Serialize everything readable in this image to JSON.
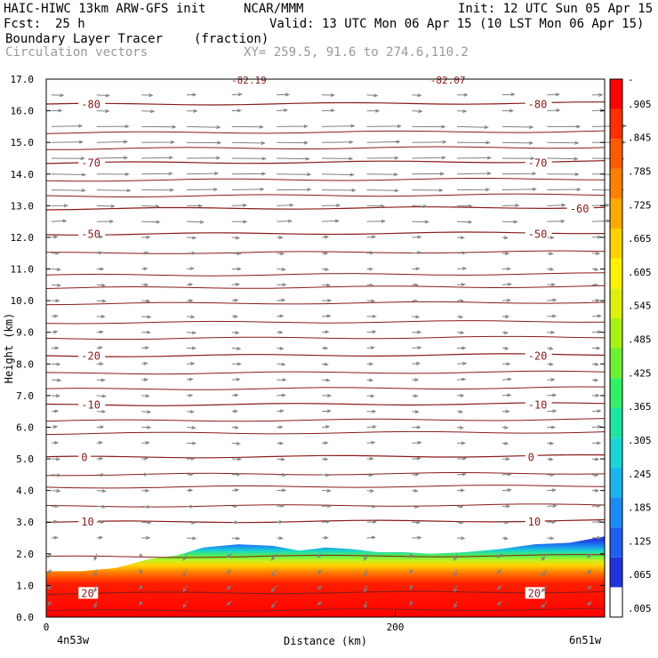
{
  "header": {
    "model": "HAIC-HIWC 13km ARW-GFS init",
    "org": "NCAR/MMM",
    "init": "Init: 12 UTC Sun 05 Apr 15",
    "fcst_label": "Fcst:",
    "fcst_value": "25 h",
    "valid": "Valid: 13 UTC Mon 06 Apr 15 (10 LST Mon 06 Apr 15)",
    "field_name": "Boundary Layer Tracer",
    "field_unit": "(fraction)",
    "overlay_name": "Circulation vectors",
    "xy_info": "XY= 259.5, 91.6 to 274.6,110.2"
  },
  "colors": {
    "contour": "#8b1a1a",
    "vector": "#808080",
    "axis": "#000000",
    "colorbar": [
      "#ffffff",
      "#2233dd",
      "#1f5ff0",
      "#1c8cf4",
      "#19b5ec",
      "#19d6d2",
      "#1ee6a0",
      "#30f066",
      "#6ef033",
      "#aaf018",
      "#dcf010",
      "#fff000",
      "#ffd000",
      "#ffaa00",
      "#ff8000",
      "#ff5a00",
      "#ff3000",
      "#ff0000"
    ]
  },
  "chart_data": {
    "type": "cross-section",
    "ylabel": "Height (km)",
    "xlabel": "Distance (km)",
    "x_left_label": "4n53w",
    "x_right_label": "6n51w",
    "x_ticks": [
      0,
      200
    ],
    "xlim": [
      0,
      320
    ],
    "ylim": [
      0,
      17
    ],
    "y_ticks": [
      "0.0",
      "1.0",
      "2.0",
      "3.0",
      "4.0",
      "5.0",
      "6.0",
      "7.0",
      "8.0",
      "9.0",
      "10.0",
      "11.0",
      "12.0",
      "13.0",
      "14.0",
      "15.0",
      "16.0",
      "17.0"
    ],
    "colorbar_labels": [
      ".005",
      ".065",
      ".125",
      ".185",
      ".245",
      ".305",
      ".365",
      ".425",
      ".485",
      ".545",
      ".605",
      ".665",
      ".725",
      ".785",
      ".845",
      ".905",
      "-"
    ],
    "temperature_contours": [
      {
        "label": "20",
        "km": 0.75,
        "label_side": "both"
      },
      {
        "label": "10",
        "km": 3.0,
        "label_side": "both"
      },
      {
        "label": "0",
        "km": 5.05,
        "label_side": "both"
      },
      {
        "label": "-10",
        "km": 6.7,
        "label_side": "both"
      },
      {
        "label": "-20",
        "km": 8.25,
        "label_side": "both"
      },
      {
        "label": "-50",
        "km": 12.1,
        "label_side": "both"
      },
      {
        "label": "-60",
        "km": 12.9,
        "label_side": "right"
      },
      {
        "label": "-70",
        "km": 14.35,
        "label_side": "both"
      },
      {
        "label": "-80",
        "km": 16.2,
        "label_side": "both"
      },
      {
        "label": "-82.19",
        "km": 17.05,
        "label_side": "top"
      },
      {
        "label": "-82.07",
        "km": 17.05,
        "label_side": "top"
      }
    ],
    "unlabeled_contour_km": [
      0.2,
      1.9,
      3.5,
      4.1,
      4.5,
      5.8,
      6.2,
      7.2,
      7.7,
      8.8,
      9.3,
      9.9,
      10.4,
      10.8,
      11.5,
      13.3,
      13.8,
      14.8,
      15.3
    ],
    "tracer_top_km": [
      {
        "x": 0,
        "top": 1.45
      },
      {
        "x": 20,
        "top": 1.45
      },
      {
        "x": 40,
        "top": 1.55
      },
      {
        "x": 60,
        "top": 1.85
      },
      {
        "x": 75,
        "top": 1.95
      },
      {
        "x": 90,
        "top": 2.2
      },
      {
        "x": 110,
        "top": 2.3
      },
      {
        "x": 130,
        "top": 2.25
      },
      {
        "x": 145,
        "top": 2.1
      },
      {
        "x": 160,
        "top": 2.2
      },
      {
        "x": 175,
        "top": 2.15
      },
      {
        "x": 190,
        "top": 2.05
      },
      {
        "x": 205,
        "top": 2.05
      },
      {
        "x": 220,
        "top": 2.0
      },
      {
        "x": 240,
        "top": 2.05
      },
      {
        "x": 260,
        "top": 2.15
      },
      {
        "x": 280,
        "top": 2.3
      },
      {
        "x": 300,
        "top": 2.35
      },
      {
        "x": 320,
        "top": 2.55
      }
    ],
    "vector_rows_km": [
      0.5,
      1.0,
      1.5,
      2.0,
      2.5,
      3.0,
      3.5,
      4.0,
      4.5,
      5.0,
      5.5,
      6.0,
      6.5,
      7.0,
      7.5,
      8.0,
      8.5,
      9.0,
      9.5,
      10.0,
      10.5,
      11.0,
      11.5,
      12.0,
      12.5,
      13.0,
      13.5,
      14.0,
      14.5,
      15.0,
      15.5,
      16.0,
      16.5
    ],
    "vector_columns": 13
  }
}
